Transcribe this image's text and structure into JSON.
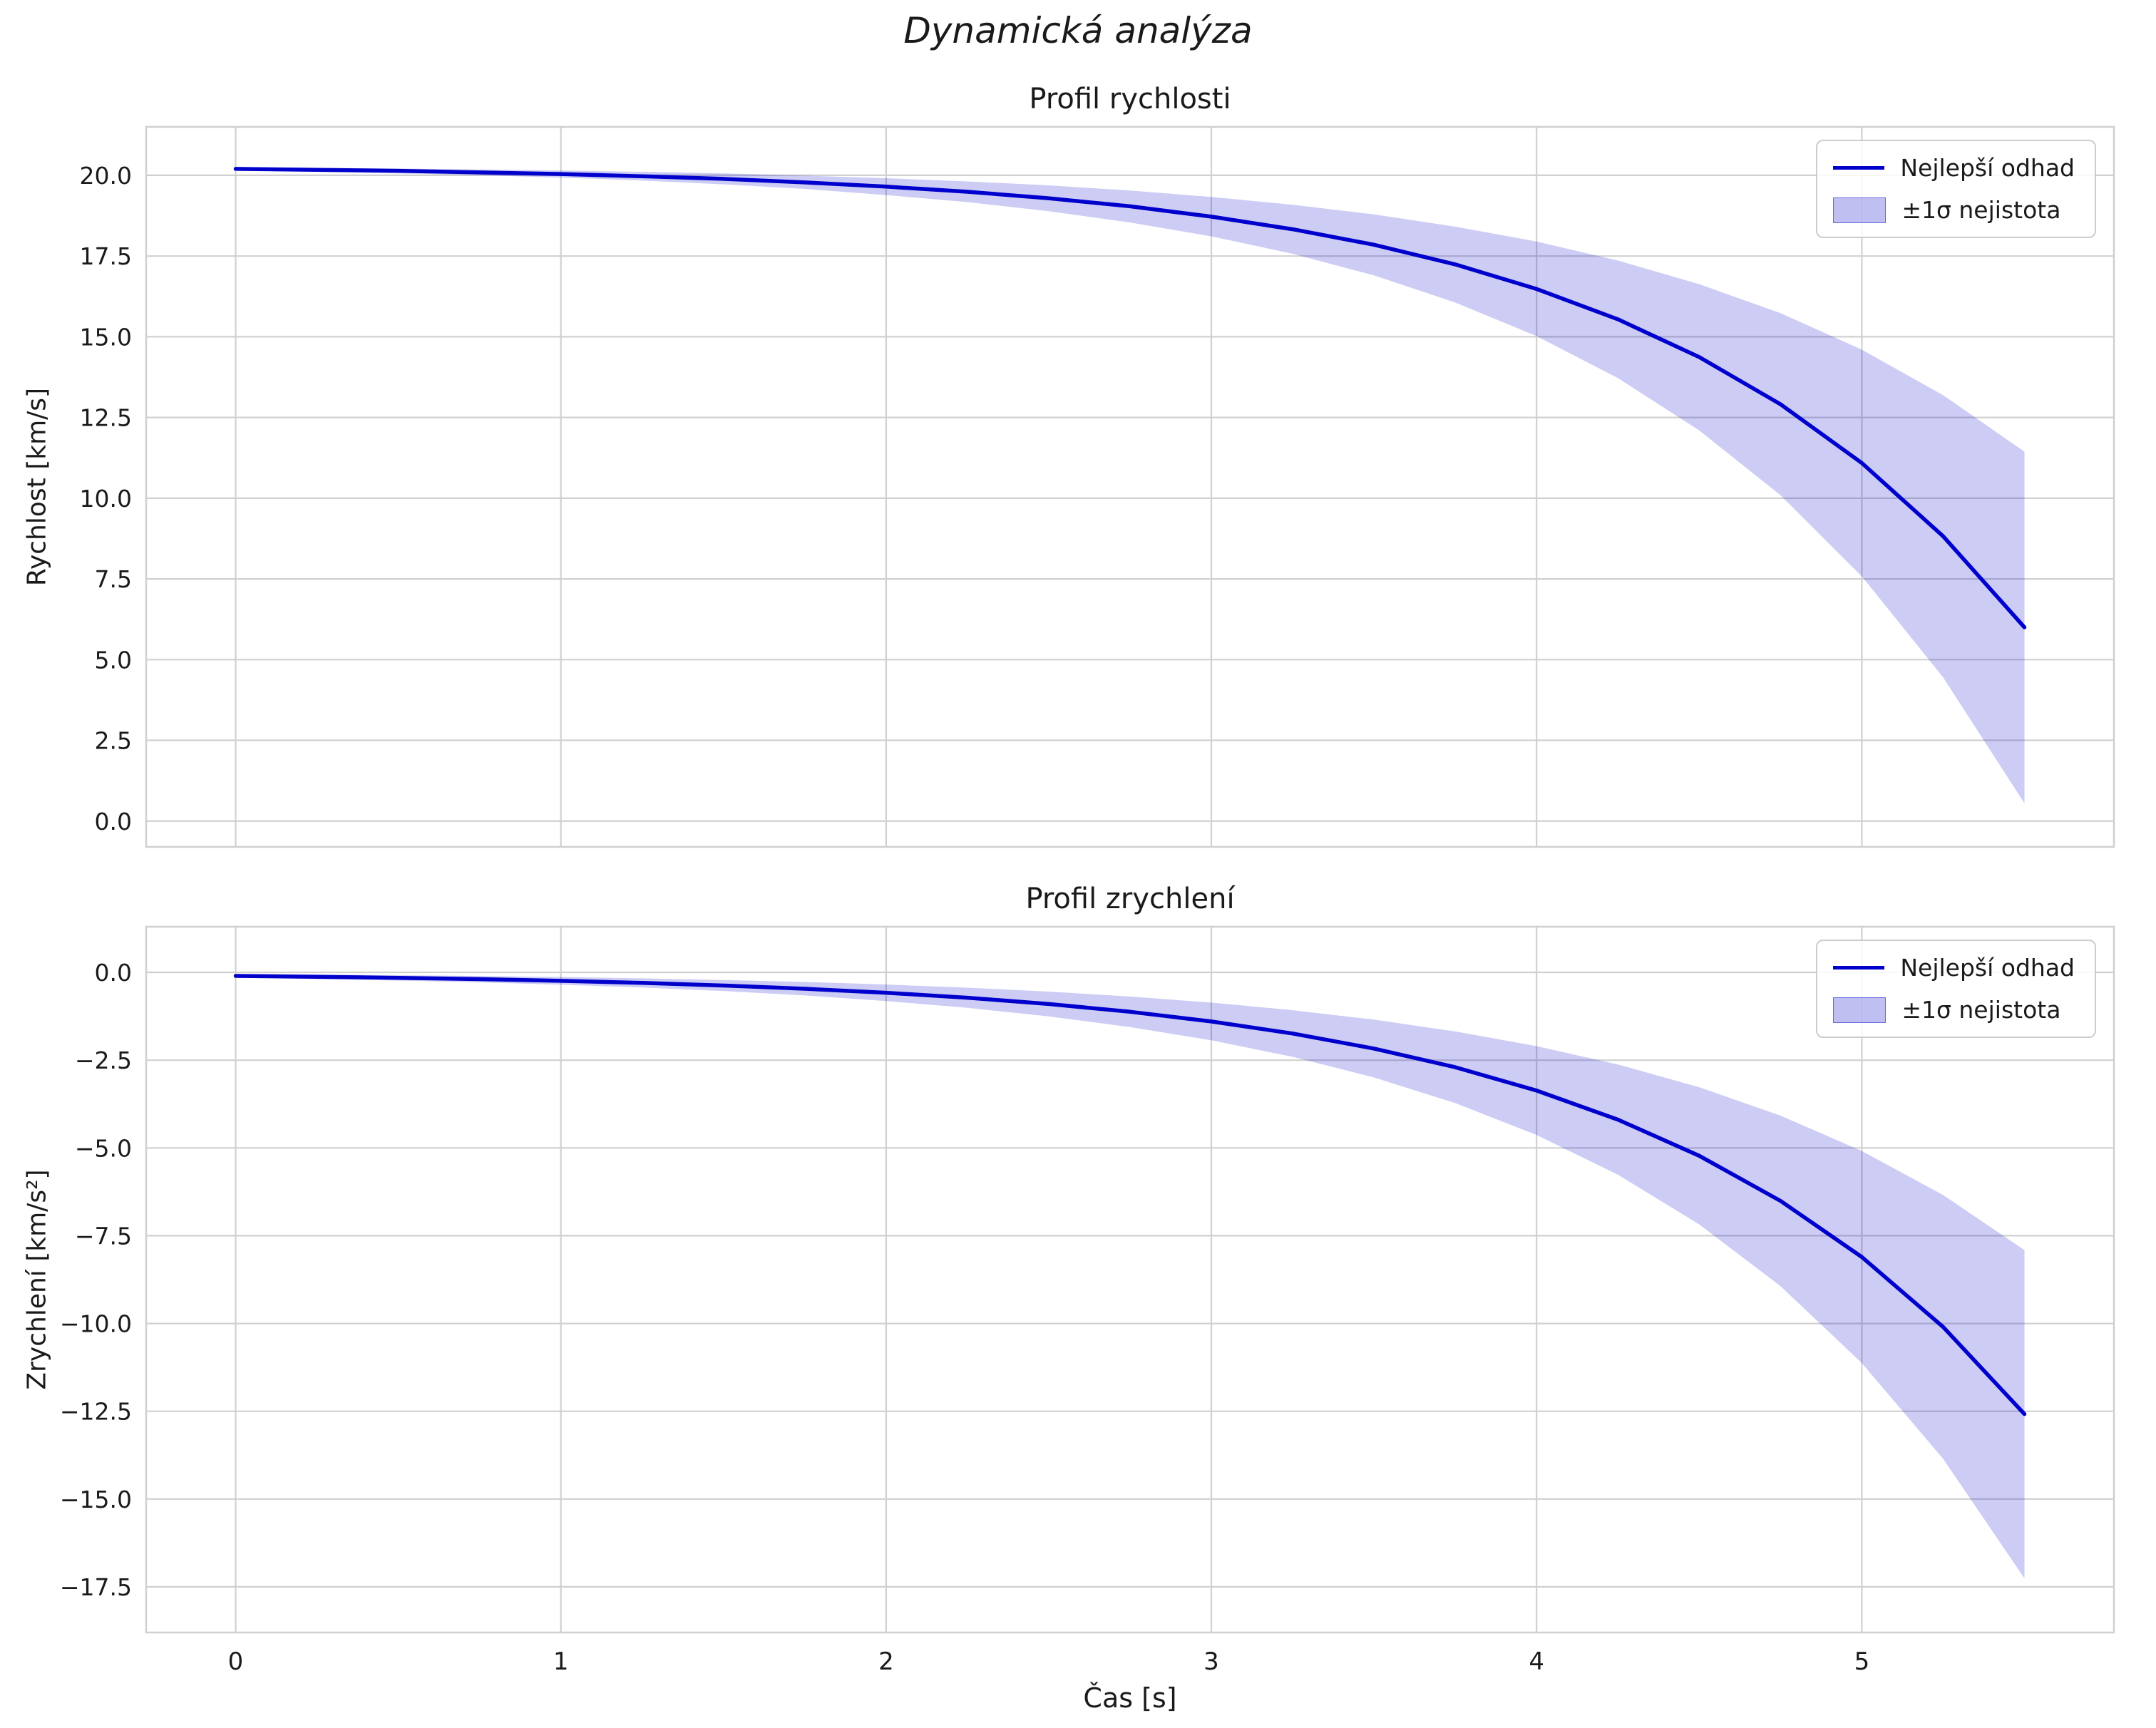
{
  "figure": {
    "title": "Dynamická analýza",
    "line_color": "#0000cc",
    "band_color": "#0000cd",
    "band_opacity": 0.2,
    "grid_color": "#d0d0d0",
    "text_color": "#1a1a1a"
  },
  "chart_data": [
    {
      "type": "line",
      "title": "Profil rychlosti",
      "xlabel": "",
      "ylabel": "Rychlost [km/s]",
      "legend": [
        "Nejlepší odhad",
        "±1σ nejistota"
      ],
      "legend_position": "upper right",
      "grid": true,
      "xlim": [
        -0.275,
        5.775
      ],
      "ylim": [
        -0.8,
        21.5
      ],
      "xticks": [
        0,
        1,
        2,
        3,
        4,
        5
      ],
      "xtick_labels": [
        "0",
        "1",
        "2",
        "3",
        "4",
        "5"
      ],
      "yticks": [
        0,
        2.5,
        5,
        7.5,
        10,
        12.5,
        15,
        17.5,
        20
      ],
      "ytick_labels": [
        "0.0",
        "2.5",
        "5.0",
        "7.5",
        "10.0",
        "12.5",
        "15.0",
        "17.5",
        "20.0"
      ],
      "x": [
        0,
        0.25,
        0.5,
        0.75,
        1,
        1.25,
        1.5,
        1.75,
        2,
        2.25,
        2.5,
        2.75,
        3,
        3.25,
        3.5,
        3.75,
        4,
        4.25,
        4.5,
        4.75,
        5,
        5.25,
        5.5
      ],
      "series": [
        {
          "name": "Nejlepší odhad",
          "values": [
            20.2,
            20.17,
            20.14,
            20.09,
            20.04,
            19.97,
            19.89,
            19.78,
            19.65,
            19.49,
            19.29,
            19.04,
            18.72,
            18.33,
            17.85,
            17.24,
            16.48,
            15.54,
            14.37,
            12.91,
            11.09,
            8.82,
            6.0
          ]
        }
      ],
      "band": {
        "name": "±1σ nejistota",
        "lower": [
          20.15,
          20.11,
          20.06,
          20.0,
          19.93,
          19.84,
          19.72,
          19.58,
          19.39,
          19.17,
          18.89,
          18.54,
          18.11,
          17.57,
          16.9,
          16.06,
          15.02,
          13.72,
          12.1,
          10.09,
          7.58,
          4.45,
          0.55
        ],
        "upper": [
          20.25,
          20.23,
          20.21,
          20.18,
          20.15,
          20.11,
          20.06,
          19.99,
          19.91,
          19.81,
          19.69,
          19.53,
          19.33,
          19.09,
          18.79,
          18.41,
          17.95,
          17.36,
          16.63,
          15.73,
          14.6,
          13.19,
          11.44
        ]
      }
    },
    {
      "type": "line",
      "title": "Profil zrychlení",
      "xlabel": "Čas [s]",
      "ylabel": "Zrychlení [km/s²]",
      "legend": [
        "Nejlepší odhad",
        "±1σ nejistota"
      ],
      "legend_position": "upper right",
      "grid": true,
      "xlim": [
        -0.275,
        5.775
      ],
      "ylim": [
        -18.8,
        1.3
      ],
      "xticks": [
        0,
        1,
        2,
        3,
        4,
        5
      ],
      "xtick_labels": [
        "0",
        "1",
        "2",
        "3",
        "4",
        "5"
      ],
      "yticks": [
        0,
        -2.5,
        -5,
        -7.5,
        -10,
        -12.5,
        -15,
        -17.5
      ],
      "ytick_labels": [
        "0.0",
        "−2.5",
        "−5.0",
        "−7.5",
        "−10.0",
        "−12.5",
        "−15.0",
        "−17.5"
      ],
      "x": [
        0,
        0.25,
        0.5,
        0.75,
        1,
        1.25,
        1.5,
        1.75,
        2,
        2.25,
        2.5,
        2.75,
        3,
        3.25,
        3.5,
        3.75,
        4,
        4.25,
        4.5,
        4.75,
        5,
        5.25,
        5.5
      ],
      "series": [
        {
          "name": "Nejlepší odhad",
          "values": [
            -0.1,
            -0.125,
            -0.155,
            -0.193,
            -0.241,
            -0.3,
            -0.374,
            -0.466,
            -0.58,
            -0.723,
            -0.901,
            -1.122,
            -1.398,
            -1.741,
            -2.169,
            -2.702,
            -3.366,
            -4.193,
            -5.224,
            -6.508,
            -8.107,
            -10.1,
            -12.58
          ]
        }
      ],
      "band": {
        "name": "±1σ nejistota",
        "lower": [
          -0.157,
          -0.191,
          -0.232,
          -0.284,
          -0.35,
          -0.431,
          -0.532,
          -0.658,
          -0.815,
          -1.011,
          -1.254,
          -1.557,
          -1.935,
          -2.405,
          -2.992,
          -3.722,
          -4.631,
          -5.764,
          -7.177,
          -8.936,
          -11.127,
          -13.857,
          -17.26
        ],
        "upper": [
          -0.043,
          -0.059,
          -0.078,
          -0.102,
          -0.132,
          -0.169,
          -0.216,
          -0.274,
          -0.345,
          -0.435,
          -0.548,
          -0.687,
          -0.861,
          -1.077,
          -1.346,
          -1.682,
          -2.101,
          -2.622,
          -3.271,
          -4.08,
          -5.087,
          -6.343,
          -7.91
        ]
      }
    }
  ]
}
